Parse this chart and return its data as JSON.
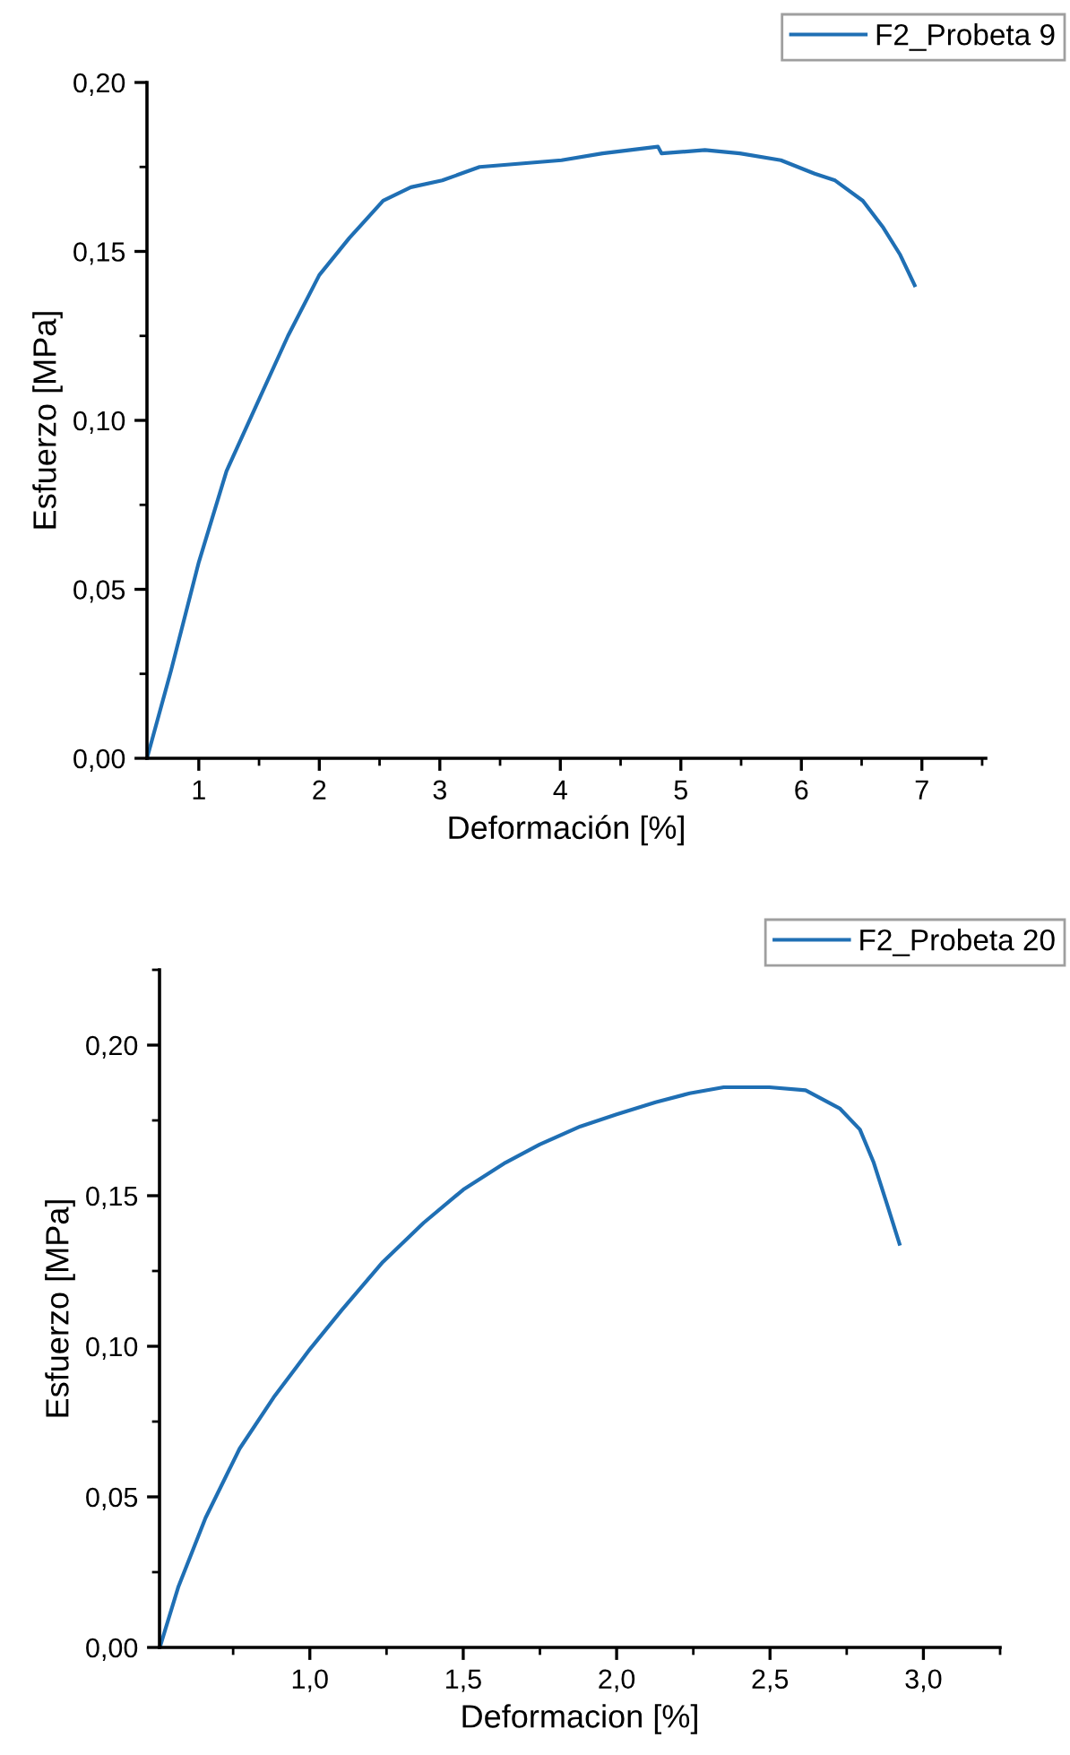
{
  "chart_data": [
    {
      "type": "line",
      "xlabel": "Deformación [%]",
      "ylabel": "Esfuerzo [MPa]",
      "legend": "top right",
      "grid": false,
      "xlim": [
        0.57,
        7.53
      ],
      "xticks": [
        1,
        2,
        3,
        4,
        5,
        6,
        7
      ],
      "ylim": [
        0,
        0.2
      ],
      "yticks": [
        {
          "value": 0,
          "label": "0,00"
        },
        {
          "value": 0.05,
          "label": "0,05"
        },
        {
          "value": 0.1,
          "label": "0,10"
        },
        {
          "value": 0.15,
          "label": "0,15"
        },
        {
          "value": 0.2,
          "label": "0,20"
        }
      ],
      "series": [
        {
          "name": "F2_Probeta 9",
          "color": "#1f6fb4",
          "x": [
            0.57,
            0.77,
            1.0,
            1.23,
            1.51,
            1.74,
            2.0,
            2.25,
            2.53,
            2.76,
            3.02,
            3.33,
            3.67,
            4.01,
            4.35,
            4.81,
            4.84,
            5.2,
            5.49,
            5.83,
            6.11,
            6.28,
            6.51,
            6.68,
            6.82,
            6.94
          ],
          "values": [
            0,
            0.026,
            0.058,
            0.085,
            0.107,
            0.125,
            0.143,
            0.154,
            0.165,
            0.169,
            0.171,
            0.175,
            0.176,
            0.177,
            0.179,
            0.181,
            0.179,
            0.18,
            0.179,
            0.177,
            0.173,
            0.171,
            0.165,
            0.157,
            0.149,
            0.14
          ]
        }
      ]
    },
    {
      "type": "line",
      "xlabel": "Deformacion [%]",
      "ylabel": "Esfuerzo [MPa]",
      "legend": "top right",
      "grid": false,
      "xlim": [
        0.51,
        3.25
      ],
      "xticks": [
        {
          "value": 1,
          "label": "1,0"
        },
        {
          "value": 1.5,
          "label": "1,5"
        },
        {
          "value": 2,
          "label": "2,0"
        },
        {
          "value": 2.5,
          "label": "2,5"
        },
        {
          "value": 3,
          "label": "3,0"
        }
      ],
      "ylim": [
        0,
        0.225
      ],
      "yticks": [
        {
          "value": 0,
          "label": "0,00"
        },
        {
          "value": 0.05,
          "label": "0,05"
        },
        {
          "value": 0.1,
          "label": "0,10"
        },
        {
          "value": 0.15,
          "label": "0,15"
        },
        {
          "value": 0.2,
          "label": "0,20"
        }
      ],
      "series": [
        {
          "name": "F2_Probeta 20",
          "color": "#1f6fb4",
          "x": [
            0.511,
            0.571,
            0.66,
            0.771,
            0.882,
            1.0,
            1.104,
            1.238,
            1.371,
            1.5,
            1.638,
            1.749,
            1.882,
            2.0,
            2.127,
            2.238,
            2.349,
            2.498,
            2.616,
            2.727,
            2.793,
            2.838,
            2.882,
            2.922
          ],
          "values": [
            0,
            0.02,
            0.043,
            0.066,
            0.083,
            0.099,
            0.112,
            0.128,
            0.141,
            0.152,
            0.161,
            0.167,
            0.173,
            0.177,
            0.181,
            0.184,
            0.186,
            0.186,
            0.185,
            0.179,
            0.172,
            0.161,
            0.147,
            0.134
          ]
        }
      ]
    }
  ]
}
